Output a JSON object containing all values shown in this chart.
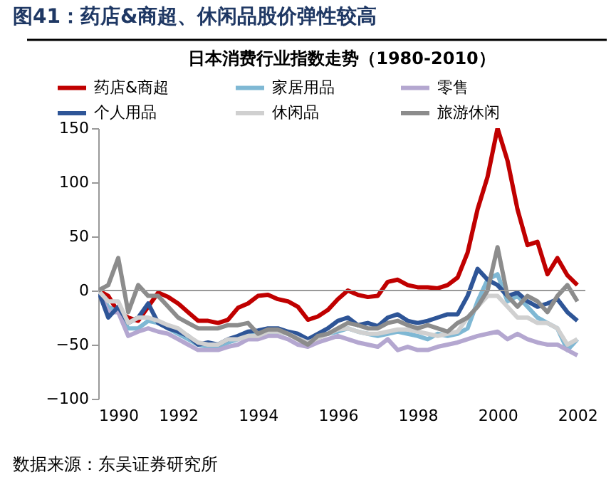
{
  "chart_data": {
    "type": "line",
    "title": "图41：药店&商超、休闲品股价弹性较高",
    "subtitle": "日本消费行业指数走势（1980-2010）",
    "x": [
      1990,
      1990.25,
      1990.5,
      1990.75,
      1991,
      1991.25,
      1991.5,
      1991.75,
      1992,
      1992.25,
      1992.5,
      1992.75,
      1993,
      1993.25,
      1993.5,
      1993.75,
      1994,
      1994.25,
      1994.5,
      1994.75,
      1995,
      1995.25,
      1995.5,
      1995.75,
      1996,
      1996.25,
      1996.5,
      1996.75,
      1997,
      1997.25,
      1997.5,
      1997.75,
      1998,
      1998.25,
      1998.5,
      1998.75,
      1999,
      1999.25,
      1999.5,
      1999.75,
      2000,
      2000.25,
      2000.5,
      2000.75,
      2001,
      2001.25,
      2001.5,
      2001.75,
      2002
    ],
    "series": [
      {
        "name": "药店&商超",
        "color": "#c00000",
        "values": [
          0,
          -5,
          -20,
          -25,
          -28,
          -15,
          -2,
          -6,
          -12,
          -20,
          -28,
          -28,
          -30,
          -27,
          -16,
          -12,
          -5,
          -4,
          -8,
          -10,
          -15,
          -27,
          -24,
          -18,
          -8,
          0,
          -4,
          -6,
          -5,
          8,
          10,
          5,
          3,
          3,
          2,
          5,
          12,
          35,
          75,
          105,
          150,
          120,
          75,
          42,
          45,
          15,
          30,
          14,
          5
        ]
      },
      {
        "name": "家居用品",
        "color": "#7fb8d4",
        "values": [
          0,
          -15,
          -20,
          -35,
          -35,
          -28,
          -30,
          -35,
          -40,
          -45,
          -50,
          -52,
          -52,
          -48,
          -45,
          -40,
          -40,
          -38,
          -38,
          -40,
          -42,
          -47,
          -42,
          -40,
          -38,
          -35,
          -38,
          -40,
          -42,
          -40,
          -38,
          -40,
          -42,
          -45,
          -40,
          -42,
          -40,
          -35,
          -10,
          10,
          15,
          -10,
          -5,
          -15,
          -25,
          -30,
          -35,
          -55,
          -45
        ]
      },
      {
        "name": "零售",
        "color": "#b4a7d0",
        "values": [
          0,
          -20,
          -20,
          -42,
          -38,
          -35,
          -38,
          -40,
          -45,
          -50,
          -55,
          -55,
          -55,
          -52,
          -50,
          -45,
          -45,
          -42,
          -42,
          -45,
          -50,
          -52,
          -48,
          -45,
          -42,
          -45,
          -48,
          -50,
          -52,
          -45,
          -55,
          -52,
          -55,
          -55,
          -52,
          -50,
          -48,
          -45,
          -42,
          -40,
          -38,
          -45,
          -40,
          -45,
          -48,
          -50,
          -50,
          -55,
          -60
        ]
      },
      {
        "name": "个人用品",
        "color": "#2e5597",
        "values": [
          0,
          -25,
          -15,
          -30,
          -25,
          -12,
          -30,
          -35,
          -38,
          -42,
          -50,
          -48,
          -50,
          -45,
          -42,
          -38,
          -37,
          -35,
          -35,
          -38,
          -40,
          -45,
          -40,
          -35,
          -28,
          -25,
          -32,
          -30,
          -33,
          -25,
          -22,
          -28,
          -30,
          -28,
          -25,
          -22,
          -22,
          -5,
          20,
          10,
          5,
          -5,
          -2,
          -10,
          -15,
          -12,
          -8,
          -20,
          -28
        ]
      },
      {
        "name": "休闲品",
        "color": "#d0d0d0",
        "values": [
          0,
          -10,
          -10,
          -30,
          -25,
          -25,
          -28,
          -32,
          -35,
          -42,
          -48,
          -50,
          -50,
          -45,
          -45,
          -42,
          -42,
          -38,
          -38,
          -40,
          -44,
          -48,
          -44,
          -40,
          -36,
          -35,
          -38,
          -40,
          -40,
          -38,
          -36,
          -36,
          -38,
          -40,
          -42,
          -40,
          -38,
          -25,
          -15,
          -5,
          -5,
          -15,
          -25,
          -25,
          -30,
          -30,
          -35,
          -50,
          -45
        ]
      },
      {
        "name": "旅游休闲",
        "color": "#8c8c8c",
        "values": [
          0,
          5,
          30,
          -20,
          5,
          -5,
          -5,
          -15,
          -25,
          -30,
          -35,
          -35,
          -35,
          -32,
          -32,
          -30,
          -40,
          -36,
          -36,
          -40,
          -45,
          -50,
          -42,
          -40,
          -35,
          -30,
          -32,
          -35,
          -35,
          -30,
          -28,
          -32,
          -35,
          -32,
          -35,
          -38,
          -30,
          -25,
          -15,
          0,
          40,
          -5,
          -15,
          -5,
          -10,
          -20,
          -5,
          5,
          -10
        ]
      }
    ],
    "xlim": [
      1990,
      2002.2
    ],
    "xticks": [
      1990,
      1992,
      1994,
      1996,
      1998,
      2000,
      2002
    ],
    "ylim": [
      -100,
      150
    ],
    "yticks": [
      -100,
      -50,
      0,
      50,
      100,
      150
    ],
    "ref_lines": [
      {
        "axis": "y",
        "value": 0,
        "color": "#999999"
      }
    ],
    "grid": false,
    "legend": "top",
    "line_style": "solid",
    "marker": "none",
    "annotations": [
      "数据来源：东吴证券研究所"
    ]
  }
}
